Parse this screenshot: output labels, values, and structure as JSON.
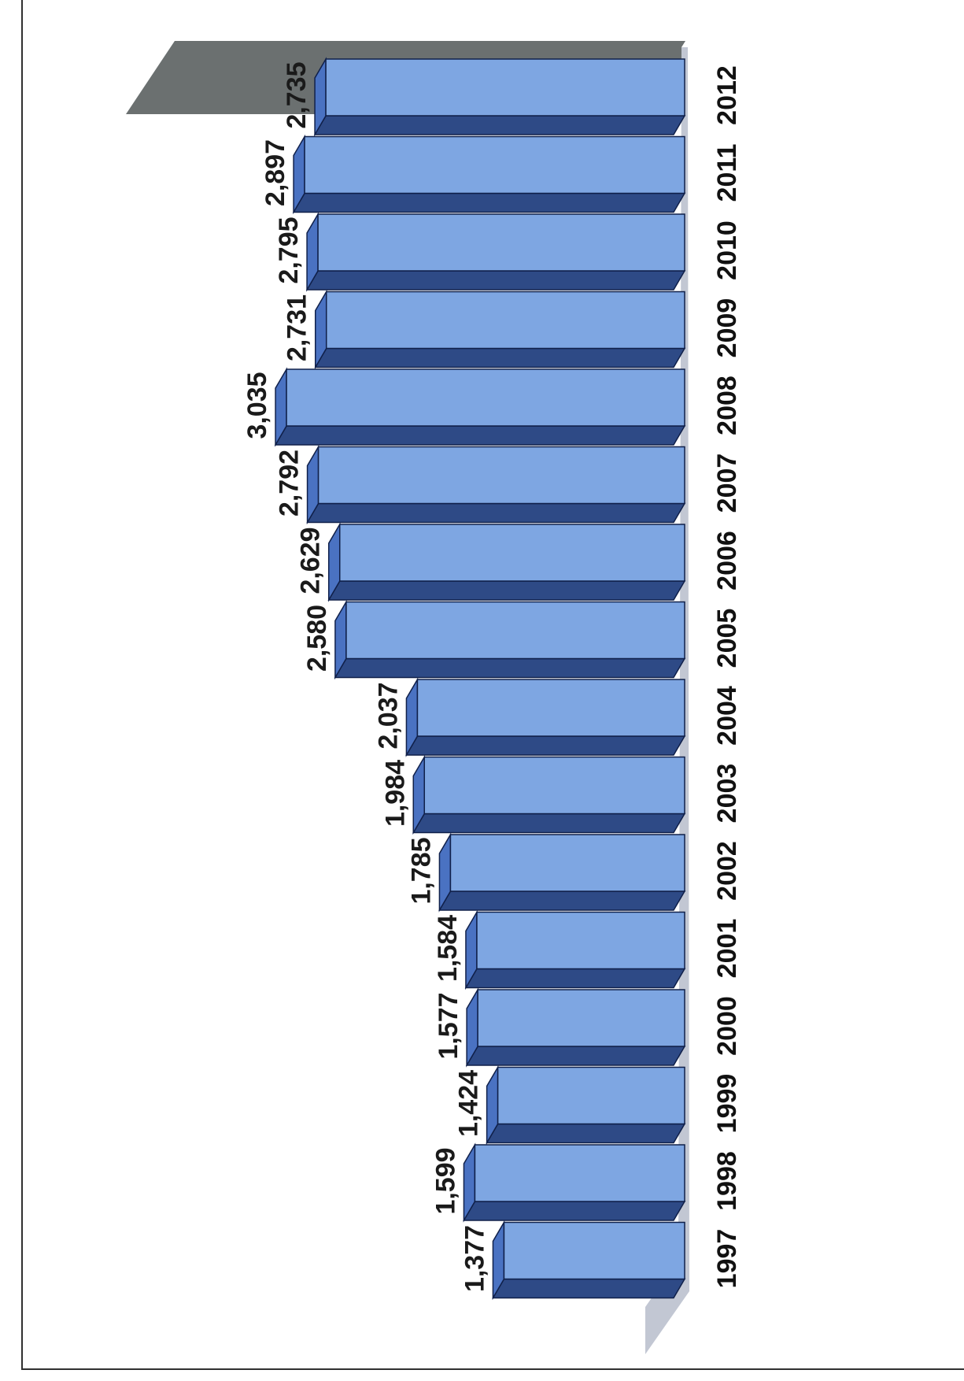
{
  "chart_data": {
    "type": "bar",
    "orientation": "horizontal-3d",
    "categories": [
      "1997",
      "1998",
      "1999",
      "2000",
      "2001",
      "2002",
      "2003",
      "2004",
      "2005",
      "2006",
      "2007",
      "2008",
      "2009",
      "2010",
      "2011",
      "2012"
    ],
    "values": [
      1377,
      1599,
      1424,
      1577,
      1584,
      1785,
      1984,
      2037,
      2580,
      2629,
      2792,
      3035,
      2731,
      2795,
      2897,
      2735
    ],
    "value_labels": [
      "1,377",
      "1,599",
      "1,424",
      "1,577",
      "1,584",
      "1,785",
      "1,984",
      "2,037",
      "2,580",
      "2,629",
      "2,792",
      "3,035",
      "2,731",
      "2,795",
      "2,897",
      "2,735"
    ],
    "title": "",
    "xlabel": "",
    "ylabel": "",
    "grid": false,
    "legend": "none",
    "rotation": "page rotated 90 degrees",
    "colors": {
      "bar_face": "#7ea6e2",
      "bar_top": "#2e4a86",
      "bar_side": "#4a72c2",
      "bar_outline": "#10204a",
      "floor": "#c2c7d3",
      "wall": "#6b7070"
    }
  }
}
